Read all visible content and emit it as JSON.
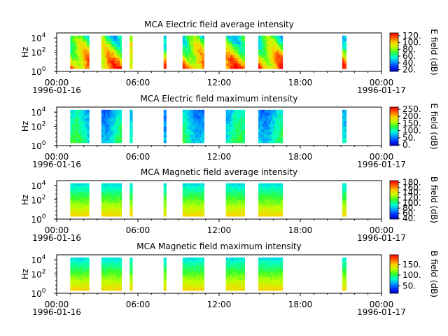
{
  "chart_data": [
    {
      "type": "heatmap",
      "title": "MCA  Electric field average intensity",
      "ylabel": "Hz",
      "ytick_labels": [
        {
          "base": "10",
          "exp": "0"
        },
        {
          "base": "10",
          "exp": "2"
        },
        {
          "base": "10",
          "exp": "4"
        }
      ],
      "xtick_labels": [
        "00:00\n1996-01-16",
        "06:00",
        "12:00",
        "18:00",
        "00:00\n1996-01-17"
      ],
      "x_range": [
        "1996-01-16 00:00",
        "1996-01-17 00:00"
      ],
      "y_scale": "log",
      "colorbar": {
        "label": "E field (dB)",
        "ticks": [
          "20.",
          "40.",
          "60.",
          "80.",
          "100.",
          "120."
        ],
        "range": [
          15,
          128
        ]
      },
      "data_intervals_hours": [
        [
          1.0,
          2.4
        ],
        [
          3.3,
          4.8
        ],
        [
          5.4,
          5.6
        ],
        [
          7.9,
          8.1
        ],
        [
          9.3,
          10.9
        ],
        [
          12.5,
          13.9
        ],
        [
          14.9,
          16.7
        ],
        [
          21.1,
          21.4
        ]
      ],
      "intensity_level": "high"
    },
    {
      "type": "heatmap",
      "title": "MCA  Electric field maximum intensity",
      "ylabel": "Hz",
      "ytick_labels": [
        {
          "base": "10",
          "exp": "0"
        },
        {
          "base": "10",
          "exp": "2"
        },
        {
          "base": "10",
          "exp": "4"
        }
      ],
      "xtick_labels": [
        "00:00\n1996-01-16",
        "06:00",
        "12:00",
        "18:00",
        "00:00\n1996-01-17"
      ],
      "x_range": [
        "1996-01-16 00:00",
        "1996-01-17 00:00"
      ],
      "y_scale": "log",
      "colorbar": {
        "label": "E field (dB)",
        "ticks": [
          "0.",
          "50.",
          "100.",
          "150.",
          "200.",
          "250."
        ],
        "range": [
          -5,
          265
        ]
      },
      "data_intervals_hours": [
        [
          1.0,
          2.4
        ],
        [
          3.3,
          4.8
        ],
        [
          5.4,
          5.6
        ],
        [
          7.9,
          8.1
        ],
        [
          9.3,
          10.9
        ],
        [
          12.5,
          13.9
        ],
        [
          14.9,
          16.7
        ],
        [
          21.1,
          21.4
        ]
      ],
      "intensity_level": "low"
    },
    {
      "type": "heatmap",
      "title": "MCA  Magnetic field average intensity",
      "ylabel": "Hz",
      "ytick_labels": [
        {
          "base": "10",
          "exp": "0"
        },
        {
          "base": "10",
          "exp": "2"
        },
        {
          "base": "10",
          "exp": "4"
        }
      ],
      "xtick_labels": [
        "00:00\n1996-01-16",
        "06:00",
        "12:00",
        "18:00",
        "00:00\n1996-01-17"
      ],
      "x_range": [
        "1996-01-16 00:00",
        "1996-01-17 00:00"
      ],
      "y_scale": "log",
      "colorbar": {
        "label": "B field (dB)",
        "ticks": [
          "40.",
          "60.",
          "80.",
          "100.",
          "120.",
          "140.",
          "160.",
          "180."
        ],
        "range": [
          37,
          187
        ]
      },
      "data_intervals_hours": [
        [
          1.0,
          2.4
        ],
        [
          3.3,
          4.8
        ],
        [
          5.4,
          5.6
        ],
        [
          7.9,
          8.1
        ],
        [
          9.3,
          10.9
        ],
        [
          12.5,
          13.9
        ],
        [
          14.9,
          16.7
        ],
        [
          21.1,
          21.4
        ]
      ],
      "intensity_level": "medium"
    },
    {
      "type": "heatmap",
      "title": "MCA  Magnetic field maximum intensity",
      "ylabel": "Hz",
      "ytick_labels": [
        {
          "base": "10",
          "exp": "0"
        },
        {
          "base": "10",
          "exp": "2"
        },
        {
          "base": "10",
          "exp": "4"
        }
      ],
      "xtick_labels": [
        "00:00\n1996-01-16",
        "06:00",
        "12:00",
        "18:00",
        "00:00\n1996-01-17"
      ],
      "x_range": [
        "1996-01-16 00:00",
        "1996-01-17 00:00"
      ],
      "y_scale": "log",
      "colorbar": {
        "label": "B field (dB)",
        "ticks": [
          "50.",
          "100.",
          "150."
        ],
        "range": [
          15,
          195
        ]
      },
      "data_intervals_hours": [
        [
          1.0,
          2.4
        ],
        [
          3.3,
          4.8
        ],
        [
          5.4,
          5.6
        ],
        [
          7.9,
          8.1
        ],
        [
          9.3,
          10.9
        ],
        [
          12.5,
          13.9
        ],
        [
          14.9,
          16.7
        ],
        [
          21.1,
          21.4
        ]
      ],
      "intensity_level": "medium"
    }
  ]
}
